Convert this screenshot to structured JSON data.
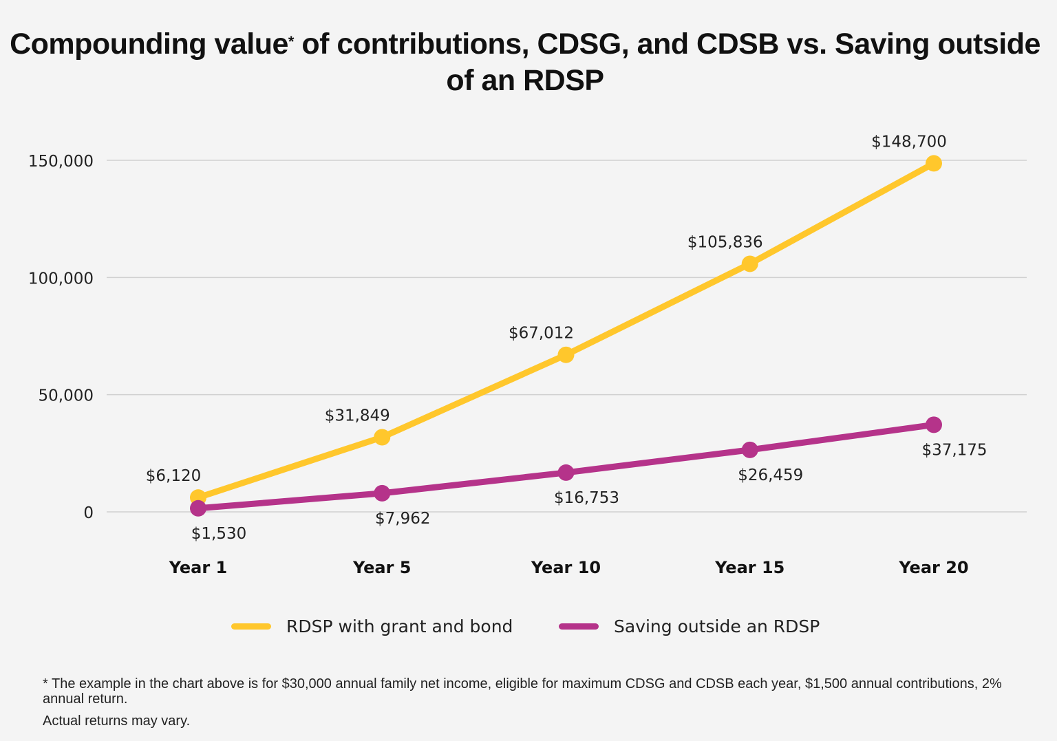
{
  "chart_data": {
    "type": "line",
    "title_main": "Compounding value",
    "title_mark": "*",
    "title_rest": " of contributions, CDSG, and CDSB vs. Saving outside of an RDSP",
    "categories": [
      "Year 1",
      "Year 5",
      "Year 10",
      "Year 15",
      "Year 20"
    ],
    "ylim": [
      0,
      150000
    ],
    "yticks": [
      0,
      50000,
      100000,
      150000
    ],
    "ytick_labels": [
      "0",
      "50,000",
      "100,000",
      "150,000"
    ],
    "grid": true,
    "legend_placement": "bottom",
    "series": [
      {
        "name": "RDSP with grant and bond",
        "color": "#FFC72C",
        "values": [
          6120,
          31849,
          67012,
          105836,
          148700
        ],
        "labels": [
          "$6,120",
          "$31,849",
          "$67,012",
          "$105,836",
          "$148,700"
        ]
      },
      {
        "name": "Saving outside an RDSP",
        "color": "#B5338A",
        "values": [
          1530,
          7962,
          16753,
          26459,
          37175
        ],
        "labels": [
          "$1,530",
          "$7,962",
          "$16,753",
          "$26,459",
          "$37,175"
        ]
      }
    ]
  },
  "footnote": {
    "line1": "* The example in the chart above is for $30,000 annual family net income, eligible for maximum CDSG and CDSB each year, $1,500 annual contributions, 2% annual return.",
    "line2": "Actual returns may vary."
  }
}
